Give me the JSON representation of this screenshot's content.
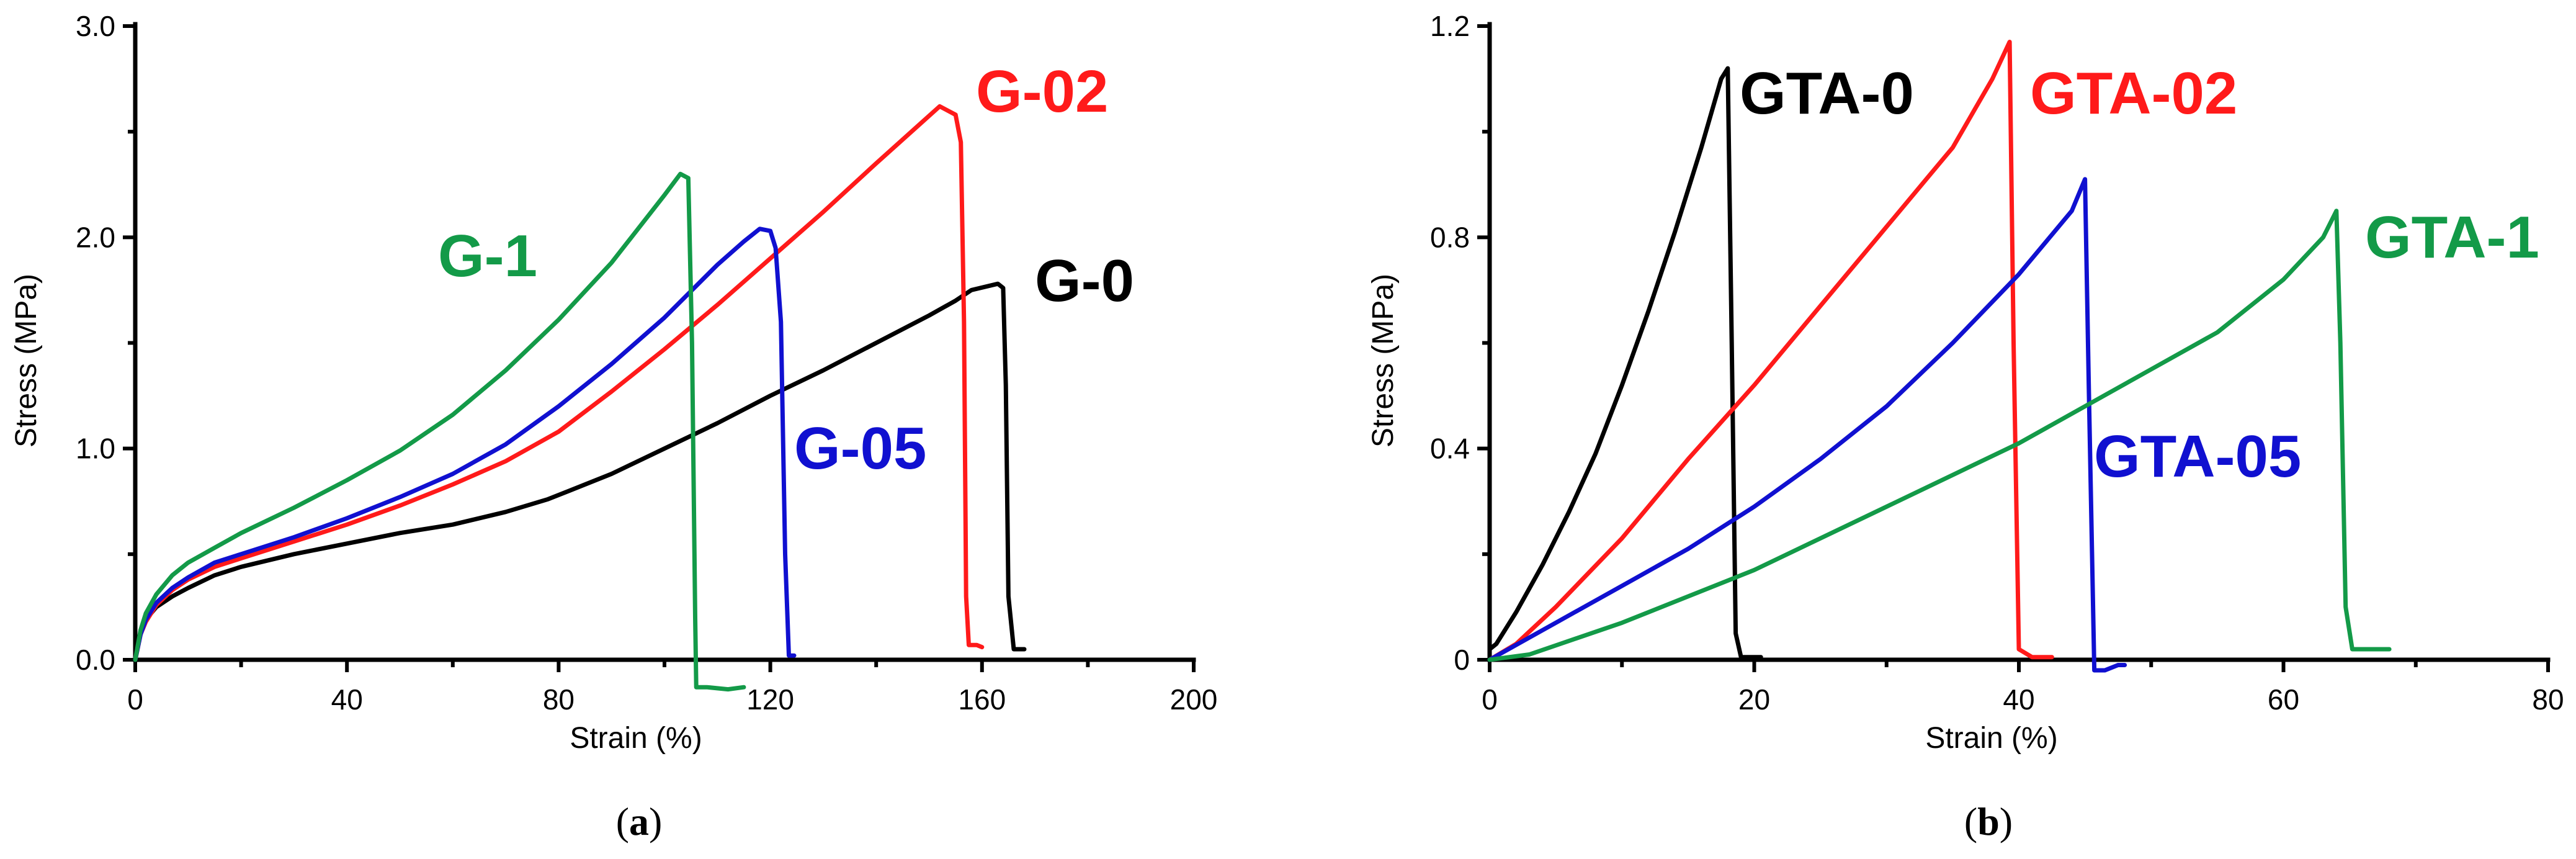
{
  "colors": {
    "black": "#000000",
    "red": "#ff1a1a",
    "blue": "#1010d0",
    "green": "#139a48"
  },
  "chart_data": [
    {
      "panel": "a",
      "panel_label": {
        "open": "(",
        "letter": "a",
        "close": ")"
      },
      "type": "line",
      "xlabel": "Strain (%)",
      "ylabel": "Stress (MPa)",
      "xlim": [
        0,
        200
      ],
      "ylim": [
        0,
        3.0
      ],
      "xticks": [
        0,
        40,
        80,
        120,
        160,
        200
      ],
      "xtick_labels": [
        "0",
        "40",
        "80",
        "120",
        "160",
        "200"
      ],
      "yticks": [
        0,
        1,
        2,
        3
      ],
      "ytick_labels": [
        "0.0",
        "1.0",
        "2.0",
        "3.0"
      ],
      "series": [
        {
          "name": "G-0",
          "color": "#000000",
          "x": [
            0,
            1,
            2,
            4,
            7,
            10,
            15,
            20,
            30,
            40,
            50,
            60,
            70,
            78,
            82,
            90,
            100,
            110,
            120,
            130,
            140,
            150,
            155,
            158,
            163,
            164,
            164.5,
            165,
            166,
            167,
            168
          ],
          "y": [
            0,
            0.12,
            0.19,
            0.25,
            0.3,
            0.34,
            0.4,
            0.44,
            0.5,
            0.55,
            0.6,
            0.64,
            0.7,
            0.76,
            0.8,
            0.88,
            1.0,
            1.12,
            1.25,
            1.37,
            1.5,
            1.63,
            1.7,
            1.75,
            1.78,
            1.76,
            1.3,
            0.3,
            0.05,
            0.05,
            0.05
          ]
        },
        {
          "name": "G-02",
          "color": "#ff1a1a",
          "x": [
            0,
            1,
            2,
            4,
            7,
            10,
            15,
            20,
            30,
            40,
            50,
            60,
            70,
            80,
            90,
            100,
            110,
            120,
            130,
            140,
            148,
            152,
            155,
            156,
            156.6,
            157,
            157.5,
            158,
            159,
            160
          ],
          "y": [
            0,
            0.12,
            0.18,
            0.26,
            0.33,
            0.38,
            0.44,
            0.48,
            0.56,
            0.64,
            0.73,
            0.83,
            0.94,
            1.08,
            1.27,
            1.47,
            1.68,
            1.9,
            2.12,
            2.35,
            2.53,
            2.62,
            2.58,
            2.45,
            1.6,
            0.3,
            0.07,
            0.07,
            0.07,
            0.06
          ]
        },
        {
          "name": "G-05",
          "color": "#1010d0",
          "x": [
            0,
            1,
            2,
            4,
            7,
            10,
            15,
            20,
            30,
            40,
            50,
            60,
            70,
            80,
            90,
            100,
            110,
            115,
            118,
            120,
            121,
            122,
            122.8,
            123.5,
            124.5
          ],
          "y": [
            0,
            0.12,
            0.19,
            0.27,
            0.34,
            0.39,
            0.46,
            0.5,
            0.58,
            0.67,
            0.77,
            0.88,
            1.02,
            1.2,
            1.4,
            1.62,
            1.87,
            1.98,
            2.04,
            2.03,
            1.95,
            1.6,
            0.5,
            0.02,
            0.02
          ]
        },
        {
          "name": "G-1",
          "color": "#139a48",
          "x": [
            0,
            1,
            2,
            4,
            7,
            10,
            15,
            20,
            30,
            40,
            50,
            60,
            70,
            80,
            90,
            100,
            103,
            104.5,
            105.2,
            105.8,
            106,
            108,
            112,
            115
          ],
          "y": [
            0,
            0.14,
            0.22,
            0.31,
            0.4,
            0.46,
            0.53,
            0.6,
            0.72,
            0.85,
            0.99,
            1.16,
            1.37,
            1.61,
            1.88,
            2.2,
            2.3,
            2.28,
            1.5,
            0.2,
            -0.13,
            -0.13,
            -0.14,
            -0.13
          ]
        }
      ],
      "annotations": [
        "G-02",
        "G-1",
        "G-0",
        "G-05"
      ]
    },
    {
      "panel": "b",
      "panel_label": {
        "open": "(",
        "letter": "b",
        "close": ")"
      },
      "type": "line",
      "xlabel": "Strain (%)",
      "ylabel": "Stress (MPa)",
      "xlim": [
        0,
        80
      ],
      "ylim": [
        0,
        1.2
      ],
      "xticks": [
        0,
        20,
        40,
        60,
        80
      ],
      "xtick_labels": [
        "0",
        "20",
        "40",
        "60",
        "80"
      ],
      "yticks": [
        0,
        0.4,
        0.8,
        1.2
      ],
      "ytick_labels": [
        "0",
        "0.4",
        "0.8",
        "1.2"
      ],
      "series": [
        {
          "name": "GTA-0",
          "color": "#000000",
          "x": [
            0,
            0.5,
            2,
            4,
            6,
            8,
            10,
            12,
            14,
            16,
            17.5,
            18,
            18.3,
            18.6,
            19,
            20,
            20.5
          ],
          "y": [
            0.02,
            0.03,
            0.09,
            0.18,
            0.28,
            0.39,
            0.52,
            0.66,
            0.81,
            0.97,
            1.1,
            1.12,
            0.6,
            0.05,
            0.005,
            0.005,
            0.005
          ]
        },
        {
          "name": "GTA-02",
          "color": "#ff1a1a",
          "x": [
            0,
            2,
            5,
            10,
            15,
            20,
            25,
            30,
            33,
            35,
            38,
            39.3,
            39.6,
            40,
            41,
            42.5
          ],
          "y": [
            0,
            0.03,
            0.1,
            0.23,
            0.38,
            0.52,
            0.67,
            0.82,
            0.91,
            0.97,
            1.1,
            1.17,
            0.6,
            0.02,
            0.005,
            0.005
          ]
        },
        {
          "name": "GTA-05",
          "color": "#1010d0",
          "x": [
            0,
            5,
            10,
            15,
            20,
            25,
            30,
            35,
            40,
            44,
            45,
            45.3,
            45.7,
            46.5,
            47.5,
            48
          ],
          "y": [
            0,
            0.07,
            0.14,
            0.21,
            0.29,
            0.38,
            0.48,
            0.6,
            0.73,
            0.85,
            0.91,
            0.5,
            -0.02,
            -0.02,
            -0.01,
            -0.01
          ]
        },
        {
          "name": "GTA-1",
          "color": "#139a48",
          "x": [
            0,
            3,
            10,
            20,
            30,
            40,
            50,
            55,
            60,
            63,
            64,
            64.3,
            64.7,
            65.2,
            66,
            68
          ],
          "y": [
            0,
            0.01,
            0.07,
            0.17,
            0.29,
            0.41,
            0.55,
            0.62,
            0.72,
            0.8,
            0.85,
            0.6,
            0.1,
            0.02,
            0.02,
            0.02
          ]
        }
      ],
      "annotations": [
        "GTA-0",
        "GTA-02",
        "GTA-1",
        "GTA-05"
      ]
    }
  ]
}
